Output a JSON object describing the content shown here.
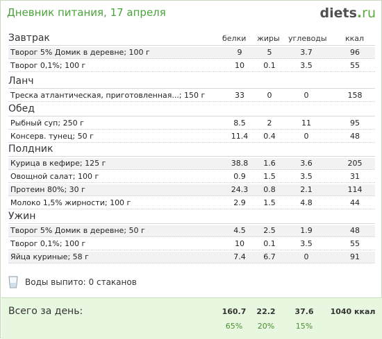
{
  "header": {
    "title": "Дневник питания, 17 апреля",
    "logo_main": "diets",
    "logo_dot": ".",
    "logo_tld": "ru"
  },
  "columns": {
    "protein": "белки",
    "fat": "жиры",
    "carbs": "углеводы",
    "kcal": "ккал"
  },
  "meals": [
    {
      "name": "Завтрак",
      "items": [
        {
          "name": "Творог 5% Домик в деревне; 100 г",
          "protein": "9",
          "fat": "5",
          "carbs": "3.7",
          "kcal": "96"
        },
        {
          "name": "Творог 0,1%; 100 г",
          "protein": "10",
          "fat": "0.1",
          "carbs": "3.5",
          "kcal": "55"
        }
      ]
    },
    {
      "name": "Ланч",
      "items": [
        {
          "name": "Треска атлантическая, приготовленная...; 150 г",
          "protein": "33",
          "fat": "0",
          "carbs": "0",
          "kcal": "158"
        }
      ]
    },
    {
      "name": "Обед",
      "items": [
        {
          "name": "Рыбный суп; 250 г",
          "protein": "8.5",
          "fat": "2",
          "carbs": "11",
          "kcal": "95"
        },
        {
          "name": "Консерв. тунец; 50 г",
          "protein": "11.4",
          "fat": "0.4",
          "carbs": "0",
          "kcal": "48"
        }
      ]
    },
    {
      "name": "Полдник",
      "items": [
        {
          "name": "Курица в кефире; 125 г",
          "protein": "38.8",
          "fat": "1.6",
          "carbs": "3.6",
          "kcal": "205"
        },
        {
          "name": "Овощной салат; 100 г",
          "protein": "0.9",
          "fat": "1.5",
          "carbs": "3.5",
          "kcal": "31"
        },
        {
          "name": "Протеин 80%; 30 г",
          "protein": "24.3",
          "fat": "0.8",
          "carbs": "2.1",
          "kcal": "114"
        },
        {
          "name": "Молоко 1,5% жирности; 100 г",
          "protein": "2.9",
          "fat": "1.5",
          "carbs": "4.8",
          "kcal": "44"
        }
      ]
    },
    {
      "name": "Ужин",
      "items": [
        {
          "name": "Творог 5% Домик в деревне; 50 г",
          "protein": "4.5",
          "fat": "2.5",
          "carbs": "1.9",
          "kcal": "48"
        },
        {
          "name": "Творог 0,1%; 100 г",
          "protein": "10",
          "fat": "0.1",
          "carbs": "3.5",
          "kcal": "55"
        },
        {
          "name": "Яйца куриные; 58 г",
          "protein": "7.4",
          "fat": "6.7",
          "carbs": "0",
          "kcal": "91"
        }
      ]
    }
  ],
  "water": {
    "icon": "glass-icon",
    "text": "Воды выпито: 0 стаканов"
  },
  "totals": {
    "label": "Всего за день:",
    "protein": "160.7",
    "fat": "22.2",
    "carbs": "37.6",
    "kcal": "1040 ккал",
    "protein_pct": "65%",
    "fat_pct": "20%",
    "carbs_pct": "15%"
  },
  "colors": {
    "accent": "#4aa33b",
    "footer_bg": "#e8f7e0",
    "row_alt": "#f2f2f2"
  }
}
